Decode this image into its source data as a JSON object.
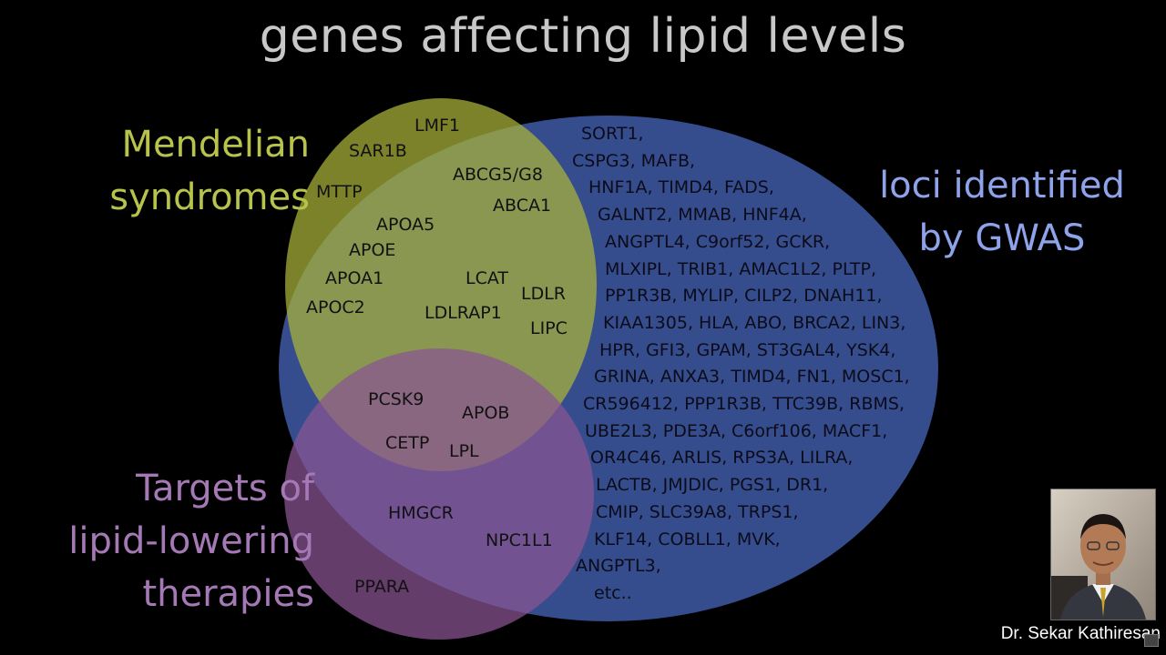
{
  "title": "genes affecting lipid levels",
  "sets": {
    "mendelian": {
      "label_lines": [
        "Mendelian",
        "syndromes"
      ],
      "color": "#aab43a",
      "text_color": "#b7c34a"
    },
    "gwas": {
      "label_lines": [
        "loci identified",
        "by GWAS"
      ],
      "color": "#3f5aa6",
      "text_color": "#8fa3ea"
    },
    "targets": {
      "label_lines": [
        "Targets of",
        "lipid-lowering",
        "therapies"
      ],
      "color": "#8a5593",
      "text_color": "#a579b6"
    }
  },
  "genes": {
    "mendelian_only": [
      "LMF1",
      "SAR1B",
      "MTTP"
    ],
    "mendelian_gwas": [
      "ABCG5/G8",
      "ABCA1",
      "APOA5",
      "APOE",
      "APOA1",
      "LCAT",
      "LDLR",
      "APOC2",
      "LDLRAP1",
      "LIPC"
    ],
    "all_three": [
      "PCSK9",
      "APOB",
      "CETP",
      "LPL"
    ],
    "targets_gwas": [
      "HMGCR",
      "NPC1L1"
    ],
    "targets_only": [
      "PPARA"
    ]
  },
  "gwas_only_lines": [
    "SORT1,",
    "CSPG3, MAFB,",
    "HNF1A, TIMD4, FADS,",
    "GALNT2, MMAB, HNF4A,",
    "ANGPTL4, C9orf52, GCKR,",
    "MLXIPL, TRIB1, AMAC1L2, PLTP,",
    "PP1R3B, MYLIP, CILP2, DNAH11,",
    "KIAA1305, HLA, ABO, BRCA2, LIN3,",
    "HPR, GFI3, GPAM, ST3GAL4, YSK4,",
    "GRINA, ANXA3, TIMD4, FN1, MOSC1,",
    "CR596412, PPP1R3B, TTC39B, RBMS,",
    "UBE2L3, PDE3A, C6orf106, MACF1,",
    "OR4C46, ARLIS, RPS3A, LILRA,",
    "LACTB, JMJDIC, PGS1, DR1,",
    "CMIP, SLC39A8, TRPS1,",
    "KLF14, COBLL1, MVK,",
    "ANGPTL3,",
    "etc.."
  ],
  "speaker": {
    "caption": "Dr. Sekar Kathiresan"
  }
}
